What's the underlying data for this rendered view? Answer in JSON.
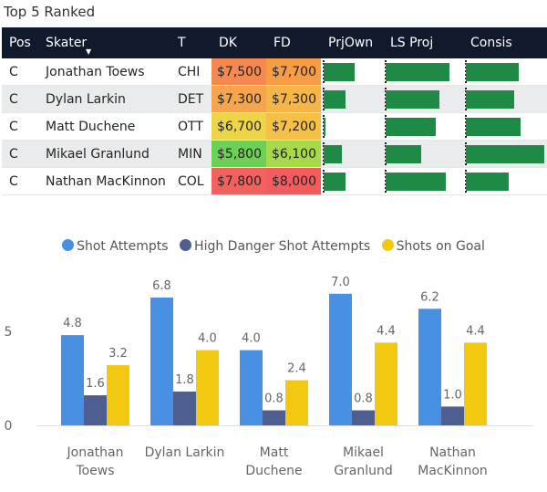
{
  "title": "Top 5 Ranked",
  "table": {
    "headers": [
      "Pos",
      "Skater",
      "T",
      "DK",
      "FD",
      "PrjOwn",
      "LS Proj",
      "Consis"
    ],
    "rows": [
      {
        "pos": "C",
        "skater": "Jonathan Toews",
        "team": "CHI",
        "dk": "$7,500",
        "fd": "$7,700",
        "dk_color": "#f5894f",
        "fd_color": "#f59c45",
        "prjown": 0.55,
        "lsproj": 0.85,
        "consis": 0.68
      },
      {
        "pos": "C",
        "skater": "Dylan Larkin",
        "team": "DET",
        "dk": "$7,300",
        "fd": "$7,300",
        "dk_color": "#f6a54d",
        "fd_color": "#f6b547",
        "prjown": 0.38,
        "lsproj": 0.72,
        "consis": 0.62
      },
      {
        "pos": "C",
        "skater": "Matt Duchene",
        "team": "OTT",
        "dk": "$6,700",
        "fd": "$7,200",
        "dk_color": "#ecd546",
        "fd_color": "#f5c048",
        "prjown": 0.02,
        "lsproj": 0.67,
        "consis": 0.7
      },
      {
        "pos": "C",
        "skater": "Mikael Granlund",
        "team": "MIN",
        "dk": "$5,800",
        "fd": "$6,100",
        "dk_color": "#6ccf56",
        "fd_color": "#a7d94a",
        "prjown": 0.32,
        "lsproj": 0.47,
        "consis": 1.0
      },
      {
        "pos": "C",
        "skater": "Nathan MacKinnon",
        "team": "COL",
        "dk": "$7,800",
        "fd": "$8,000",
        "dk_color": "#f26060",
        "fd_color": "#f25c5e",
        "prjown": 0.38,
        "lsproj": 0.8,
        "consis": 0.55
      }
    ]
  },
  "colors": {
    "shot_attempts": "#4a90e2",
    "high_danger": "#4d5f91",
    "shots_on_goal": "#f2c811",
    "bar_green": "#1e8a45"
  },
  "chart_data": {
    "type": "bar",
    "categories": [
      [
        "Jonathan",
        "Toews"
      ],
      [
        "Dylan Larkin"
      ],
      [
        "Matt",
        "Duchene"
      ],
      [
        "Mikael",
        "Granlund"
      ],
      [
        "Nathan",
        "MacKinnon"
      ]
    ],
    "series": [
      {
        "name": "Shot Attempts",
        "values": [
          4.8,
          6.8,
          4.0,
          7.0,
          6.2
        ],
        "labels": [
          "4.8",
          "6.8",
          "4.0",
          "7.0",
          "6.2"
        ]
      },
      {
        "name": "High Danger Shot Attempts",
        "values": [
          1.6,
          1.8,
          0.8,
          0.8,
          1.0
        ],
        "labels": [
          "1.6",
          "1.8",
          "0.8",
          "0.8",
          "1.0"
        ]
      },
      {
        "name": "Shots on Goal",
        "values": [
          3.2,
          4.0,
          2.4,
          4.4,
          4.4
        ],
        "labels": [
          "3.2",
          "4.0",
          "2.4",
          "4.4",
          "4.4"
        ]
      }
    ],
    "y_ticks": [
      0,
      5
    ],
    "y_tick_labels": [
      "0",
      "5"
    ],
    "ylim": [
      0,
      7.6
    ],
    "legend_position": "top-center",
    "inside_label_index": [
      [
        0,
        3
      ]
    ]
  }
}
